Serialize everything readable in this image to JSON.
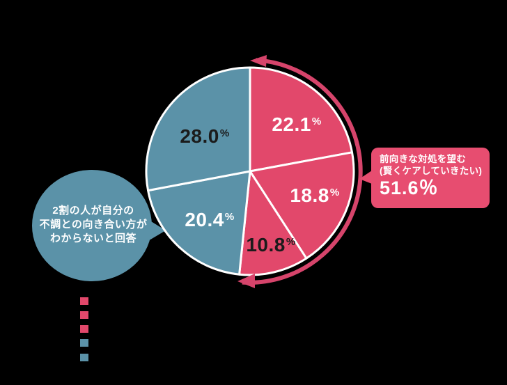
{
  "background": "#000000",
  "colors": {
    "pink": "#e2486b",
    "blue": "#5b92a8",
    "arc_pink": "#d6446b",
    "label_light": "#ffffff",
    "label_dark": "#1b1b1b"
  },
  "chart_data": {
    "type": "pie",
    "title": "",
    "start_angle_deg": 0,
    "direction": "clockwise",
    "segments": [
      {
        "display": "22.1",
        "unit": "%",
        "value": 22.1,
        "color": "#e2486b",
        "label_color": "#ffffff"
      },
      {
        "display": "18.8",
        "unit": "%",
        "value": 18.8,
        "color": "#e2486b",
        "label_color": "#ffffff"
      },
      {
        "display": "10.8",
        "unit": "%",
        "value": 10.8,
        "color": "#e2486b",
        "label_color": "#1b1b1b"
      },
      {
        "display": "20.4",
        "unit": "%",
        "value": 20.4,
        "color": "#5b92a8",
        "label_color": "#ffffff"
      },
      {
        "display": "28.0",
        "unit": "%",
        "value": 28.0,
        "color": "#5b92a8",
        "label_color": "#1b1b1b"
      }
    ],
    "highlight_group": {
      "label": "前向きな対処を望む(賢くケアしていきたい)",
      "value": 51.6,
      "covers_segments": [
        0,
        1,
        2
      ]
    }
  },
  "speech_bubble": {
    "color": "#5b92a8",
    "text_color": "#ffffff",
    "lines": [
      "2割の人が自分の",
      "不調との向き合い方が",
      "わからないと回答"
    ]
  },
  "callout": {
    "bg": "#e74d70",
    "text_color": "#ffffff",
    "line1": "前向きな対処を望む",
    "line2": "(賢くケアしていきたい)",
    "value": "51.6％"
  },
  "legend": {
    "squares": [
      "#e2486b",
      "#e2486b",
      "#e2486b",
      "#5b92a8",
      "#5b92a8"
    ]
  }
}
